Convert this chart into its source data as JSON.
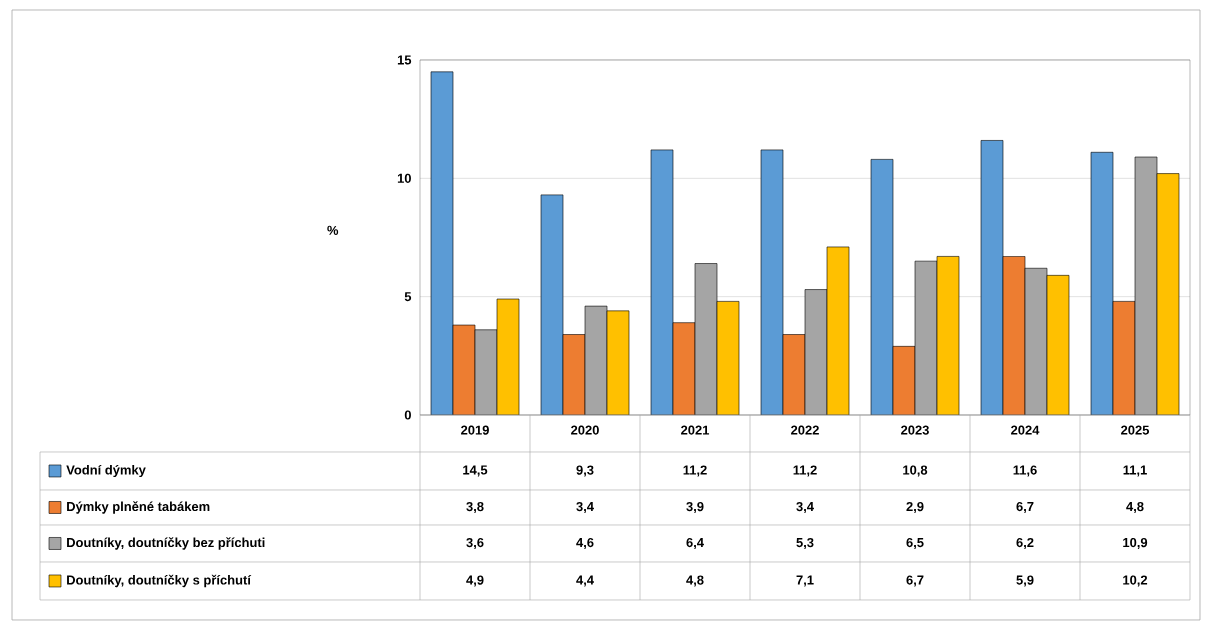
{
  "chart_data": {
    "type": "bar",
    "ylabel": "%",
    "categories": [
      "2019",
      "2020",
      "2021",
      "2022",
      "2023",
      "2024",
      "2025"
    ],
    "series": [
      {
        "name": "Vodní dýmky",
        "color": "#5b9bd5",
        "values": [
          14.5,
          9.3,
          11.2,
          11.2,
          10.8,
          11.6,
          11.1
        ],
        "value_labels": [
          "14,5",
          "9,3",
          "11,2",
          "11,2",
          "10,8",
          "11,6",
          "11,1"
        ]
      },
      {
        "name": "Dýmky plněné tabákem",
        "color": "#ed7d31",
        "values": [
          3.8,
          3.4,
          3.9,
          3.4,
          2.9,
          6.7,
          4.8
        ],
        "value_labels": [
          "3,8",
          "3,4",
          "3,9",
          "3,4",
          "2,9",
          "6,7",
          "4,8"
        ]
      },
      {
        "name": "Doutníky, doutníčky bez příchuti",
        "color": "#a5a5a5",
        "values": [
          3.6,
          4.6,
          6.4,
          5.3,
          6.5,
          6.2,
          10.9
        ],
        "value_labels": [
          "3,6",
          "4,6",
          "6,4",
          "5,3",
          "6,5",
          "6,2",
          "10,9"
        ]
      },
      {
        "name": "Doutníky, doutníčky s příchutí",
        "color": "#ffc000",
        "values": [
          4.9,
          4.4,
          4.8,
          7.1,
          6.7,
          5.9,
          10.2
        ],
        "value_labels": [
          "4,9",
          "4,4",
          "4,8",
          "7,1",
          "6,7",
          "5,9",
          "10,2"
        ]
      }
    ],
    "ylim": [
      0,
      15
    ],
    "yticks": [
      0,
      5,
      10,
      15
    ],
    "grid": "y",
    "legend": "bottom"
  }
}
